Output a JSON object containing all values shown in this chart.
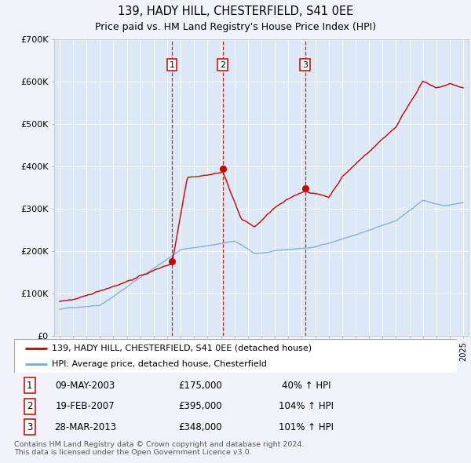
{
  "title": "139, HADY HILL, CHESTERFIELD, S41 0EE",
  "subtitle": "Price paid vs. HM Land Registry's House Price Index (HPI)",
  "background_color": "#f0f4fa",
  "plot_bg_color": "#dce8f5",
  "ylim": [
    0,
    700000
  ],
  "yticks": [
    0,
    100000,
    200000,
    300000,
    400000,
    500000,
    600000,
    700000
  ],
  "ytick_labels": [
    "£0",
    "£100K",
    "£200K",
    "£300K",
    "£400K",
    "£500K",
    "£600K",
    "£700K"
  ],
  "sale_dates": [
    2003.36,
    2007.13,
    2013.24
  ],
  "sale_prices": [
    175000,
    395000,
    348000
  ],
  "sale_labels": [
    "1",
    "2",
    "3"
  ],
  "legend_entries": [
    "139, HADY HILL, CHESTERFIELD, S41 0EE (detached house)",
    "HPI: Average price, detached house, Chesterfield"
  ],
  "table_rows": [
    [
      "1",
      "09-MAY-2003",
      "£175,000",
      "40% ↑ HPI"
    ],
    [
      "2",
      "19-FEB-2007",
      "£395,000",
      "104% ↑ HPI"
    ],
    [
      "3",
      "28-MAR-2013",
      "£348,000",
      "101% ↑ HPI"
    ]
  ],
  "footer": "Contains HM Land Registry data © Crown copyright and database right 2024.\nThis data is licensed under the Open Government Licence v3.0.",
  "red_color": "#cc0000",
  "blue_color": "#7aaadd"
}
